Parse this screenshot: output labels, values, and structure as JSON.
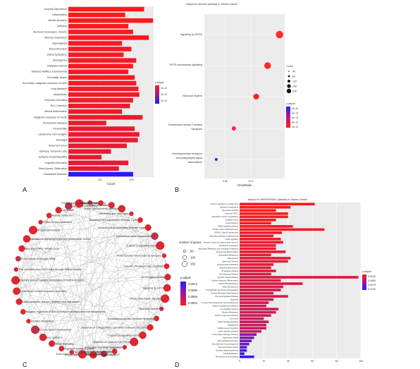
{
  "panels": [
    "A",
    "B",
    "C",
    "D"
  ],
  "chart_data": [
    {
      "panel": "A",
      "type": "bar",
      "orientation": "horizontal",
      "title": "",
      "xlabel": "Count",
      "ylabel": "",
      "xlim": [
        0,
        270
      ],
      "x_ticks": [
        "0",
        "100",
        "200"
      ],
      "categories": [
        "Unipolar Depression",
        "Inflammation",
        "Mental disorders",
        "Infection",
        "Alcoholic Intoxication, Chronic",
        "Memory impairment",
        "Hyperalgesia",
        "Mood Disorders",
        "Status Epilepticus",
        "Meningioma",
        "Malignant Glioma",
        "Diabetes Mellitus, Experimental",
        "Dermatitis, Atopic",
        "Secondary malignant neoplasm of bone",
        "Lung diseases",
        "Amyloidosis",
        "Psychotic Disorders",
        "HIV-1 infection",
        "Mental deterioration",
        "Malignant neoplasm of mouth",
        "Periodontal Diseases",
        "Periodontitis",
        "Lymphoma, Non-Hodgkin",
        "Neuralgia",
        "Recurrent tumor",
        "Epilepsy, Temporal Lobe",
        "Epileptic encephalopathy",
        "Cognition Disorders",
        "Sleep Apnea, Obstructive",
        "Gestational Diabetes"
      ],
      "values": [
        240,
        180,
        268,
        190,
        205,
        255,
        170,
        200,
        175,
        215,
        205,
        190,
        210,
        215,
        222,
        225,
        205,
        195,
        170,
        235,
        120,
        210,
        225,
        220,
        185,
        135,
        105,
        190,
        160,
        205
      ],
      "legend": {
        "title": "p.adjust",
        "labels": [
          "1e-12",
          "2e-12",
          "3e-12"
        ],
        "low_color": "#ff1a1a",
        "high_color": "#2a1aff"
      }
    },
    {
      "panel": "B",
      "type": "scatter",
      "title": "dotplot for reactom pathway in Glioma Cancer",
      "xlabel": "GeneRatio",
      "ylabel": "",
      "xlim": [
        0.01,
        0.165
      ],
      "x_ticks": [
        "0.05",
        "0.10"
      ],
      "categories": [
        "Signaling by GPCR",
        "GPCR downstream signalling",
        "Neuronal System",
        "Transmission across Chemical Synapses",
        "Neurotransmitter receptors and postsynaptic signal transmission"
      ],
      "points": [
        {
          "category": "Signaling by GPCR",
          "x": 0.155,
          "count": 170,
          "p": 0.0,
          "color": "#ff2a2a"
        },
        {
          "category": "GPCR downstream signalling",
          "x": 0.132,
          "count": 150,
          "p": 0.0,
          "color": "#ff2a2a"
        },
        {
          "category": "Neuronal System",
          "x": 0.11,
          "count": 125,
          "p": 0.0,
          "color": "#ff2222"
        },
        {
          "category": "Transmission across Chemical Synapses",
          "x": 0.067,
          "count": 80,
          "p": 0.2,
          "color": "#ff2244"
        },
        {
          "category": "Neurotransmitter receptors and postsynaptic signal transmission",
          "x": 0.033,
          "count": 40,
          "p": 1.0,
          "color": "#2222ff"
        }
      ],
      "size_legend": {
        "title": "Count",
        "labels": [
          "40",
          "80",
          "120",
          "160",
          "200"
        ]
      },
      "color_legend": {
        "title": "p.adjust",
        "labels": [
          "2e-13",
          "4e-13",
          "6e-13",
          "8e-13",
          "1e-12"
        ]
      }
    },
    {
      "panel": "C",
      "type": "network",
      "size_legend": {
        "title": "number of genes",
        "labels": [
          "50",
          "100",
          "150"
        ]
      },
      "color_legend": {
        "title": "p.adjust",
        "labels": [
          "0.0012",
          "0.0009",
          "0.0006",
          "0.0003"
        ]
      },
      "nodes": [
        "Neurexins and neuroligins",
        "Dopamine Neurotransmitter Release Cycle",
        "Serotonin Neurotransmitter Release Cycle",
        "Extracellular matrix organization",
        "G alpha (i) signalling events",
        "Protein-protein interactions at synapses",
        "Class A/1 (Rhodopsin-like receptors)",
        "GPCR ligand binding",
        "Signaling by GPCR",
        "GPCR downstream signalling",
        "Neuronal System",
        "Transmission across Chemical Synapses",
        "Assembly of collagen fibrils and other multimeric structures",
        "G alpha (s) signalling events",
        "Reduction of cytosolic Ca++ levels",
        "Integration of energy metabolism",
        "PLC beta mediated events",
        "Post-chemical synapse signaling events",
        "Phosphorylation of CD3 and TCR zeta chains",
        "Unblocking of NMDA receptors",
        "Neurotoxicity of clostridium toxins",
        "G-protein mediated events",
        "Opioid Signalling",
        "Axon guidance",
        "Nervous system development",
        "NCAM1 interactions",
        "Negative regulation of NMDA receptor-mediated neuronal transmission",
        "GABA synthesis, release, reuptake and degradation",
        "Transmission of NMDA receptor activation",
        "Assembly and cell surface presentation of NMDA receptors",
        "Ras activation upon Ca2+ influx through NMDA receptor",
        "Cross-linking of collagen fibrils",
        "Neurotransmitter release cycle",
        "Activation of NMDA receptors and postsynaptic events",
        "Ca-dependent events",
        "GABA receptor activation",
        "Muscle contraction",
        "Calmodulin",
        "LGI-ADAM interactions",
        "Glutamate Binding",
        "DAG and IP3 signaling",
        "Peptide ligand-binding receptors",
        "Cardiac conduction",
        "Amine ligand-binding receptors"
      ]
    },
    {
      "panel": "D",
      "type": "bar",
      "orientation": "horizontal",
      "title": "barplot for WikiPATHWAY pathway in Glioma Cancer",
      "xlabel": "",
      "ylabel": "",
      "xlim": [
        0,
        100
      ],
      "x_ticks": [
        "0",
        "20",
        "40",
        "60",
        "80",
        "100"
      ],
      "categories": [
        "Calcium regulation in cardiac cells",
        "Dopamine metabolism",
        "Monoamine GPCRs",
        "Serotonin HTR1",
        "Regulation of Actin Cytoskeleton",
        "Oxidative stress",
        "Focal Adhesion",
        "MAPK signaling pathway",
        "GPCRs, Class A Rhodopsin-like",
        "GPCRs, Class B Secretin-like",
        "Signaling pathways in glioblastoma",
        "Insulin signaling",
        "Nicotine Activity on Dopaminergic Neurons",
        "Glutathione metabolism",
        "Myometrial Relaxation and Contraction Pathways",
        "Neural Crest Differentiation",
        "Sphingolipid Metabolism",
        "Adipogenesis",
        "Alzheimers Disease",
        "Endochondral Ossification",
        "Fatty Acid Biosynthesis",
        "ID signaling pathway",
        "Wnt Signaling Pathway",
        "Synaptic Vesicle Pathway",
        "Cardiac Progenitor Differentiation",
        "Vitamin B12 Metabolism",
        "Heart Development",
        "Prostaglandin Synthesis and Regulation",
        "Nuclear Receptors Meta-Pathway",
        "TGF-beta Signaling Pathway",
        "Apoptosis",
        "Primary Focal Segmental Glomerulosclerosis",
        "Integrin-mediated Cell Adhesion",
        "IL-6 signaling pathway",
        "Nicotine Metabolism",
        "Vitamin D Receptor Pathway",
        "Cell Cycle",
        "Notch Signaling Pathway",
        "Angiogenesis",
        "Toll-like receptor signaling",
        "Leptin signaling pathway",
        "T-Cell antigen Receptor Pathway",
        "Hypertrophy Model",
        "Matrix Metalloproteinases",
        "Glycolysis and Gluconeogenesis",
        "Fluoropyrimidine Activity",
        "Estrogen signaling pathway",
        "Folate Metabolism",
        "Senescence and Autophagy"
      ],
      "values": [
        62,
        42,
        30,
        40,
        40,
        30,
        26,
        44,
        70,
        35,
        28,
        34,
        36,
        30,
        30,
        38,
        26,
        42,
        40,
        28,
        26,
        30,
        26,
        98,
        34,
        52,
        36,
        34,
        28,
        40,
        28,
        24,
        22,
        32,
        30,
        26,
        20,
        24,
        22,
        22,
        18,
        14,
        12,
        10,
        8,
        6,
        6,
        4,
        12
      ],
      "legend": {
        "title": "p.adjust",
        "labels": [
          "0.0025",
          "0.0050",
          "0.0075",
          "0.0100"
        ],
        "low_color": "#ff1a1a",
        "high_color": "#2a1aff"
      }
    }
  ]
}
